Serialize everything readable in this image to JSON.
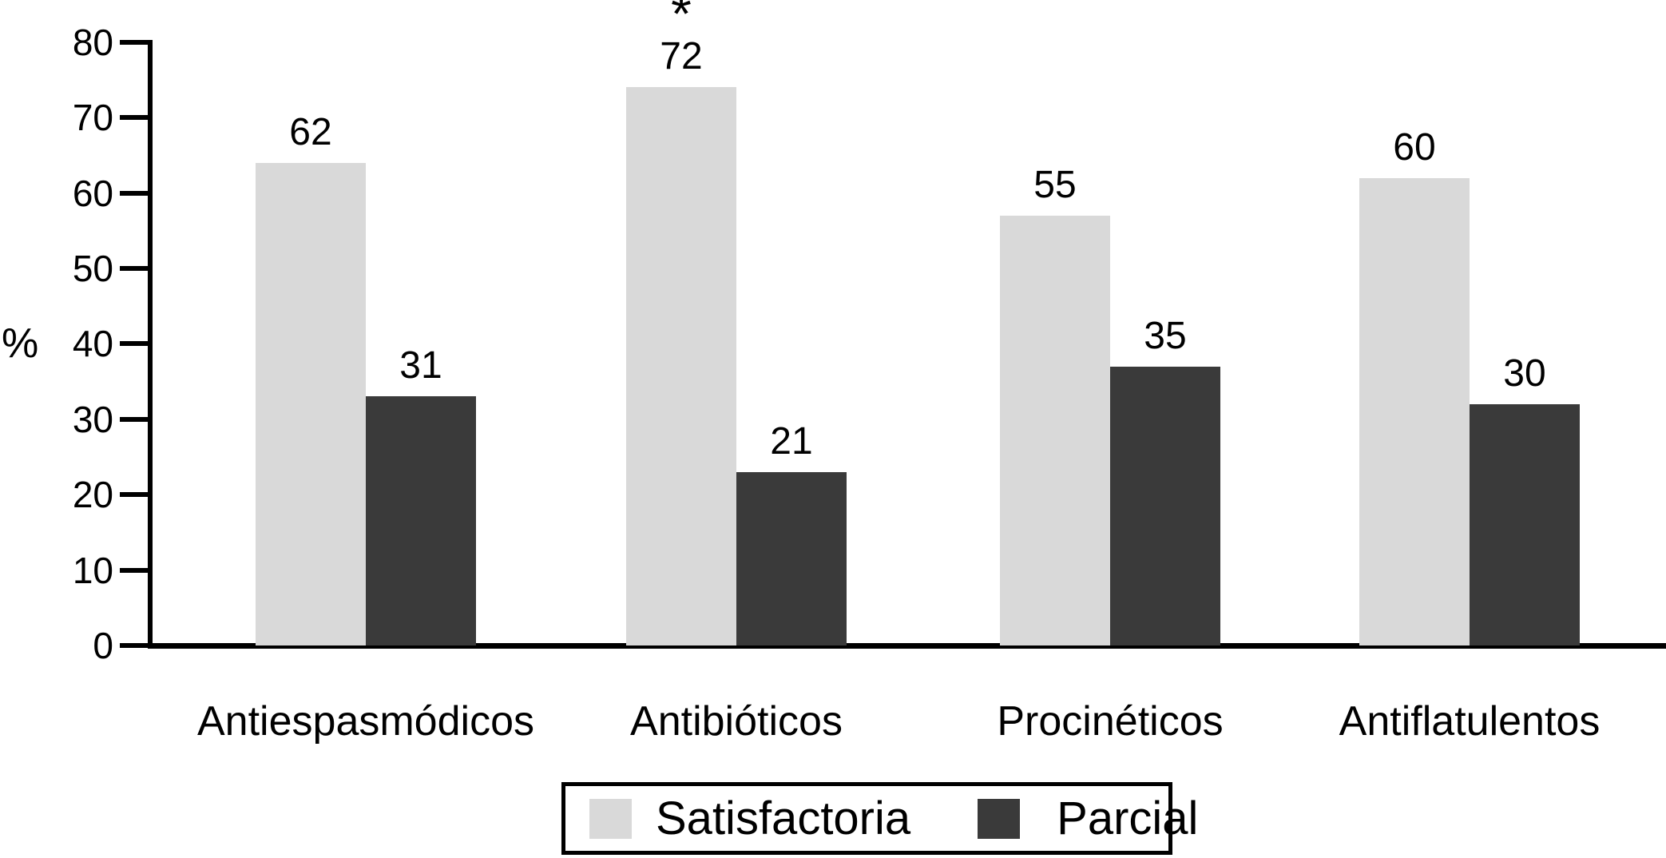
{
  "chart_data": {
    "type": "bar",
    "title": "",
    "categories": [
      "Antiespasmódicos",
      "Antibióticos",
      "Procinéticos",
      "Antiflatulentos"
    ],
    "series": [
      {
        "name": "Satisfactoria",
        "values": [
          62,
          72,
          55,
          60
        ]
      },
      {
        "name": "Parcial",
        "values": [
          31,
          21,
          35,
          30
        ]
      }
    ],
    "xlabel": "",
    "ylabel": "%",
    "ylim": [
      0,
      80
    ],
    "yticks": [
      0,
      10,
      20,
      30,
      40,
      50,
      60,
      70,
      80
    ],
    "grid": false,
    "legend_position": "bottom-center",
    "bar_labels_shown": true,
    "annotations": [
      {
        "text": "*",
        "category": "Antibióticos",
        "series": "Satisfactoria",
        "position": "above-bar"
      }
    ],
    "colors": {
      "Satisfactoria": "#d9d9d9",
      "Parcial": "#3a3a3a",
      "axis": "#000000",
      "background": "#ffffff",
      "legend_border": "#000000"
    }
  }
}
